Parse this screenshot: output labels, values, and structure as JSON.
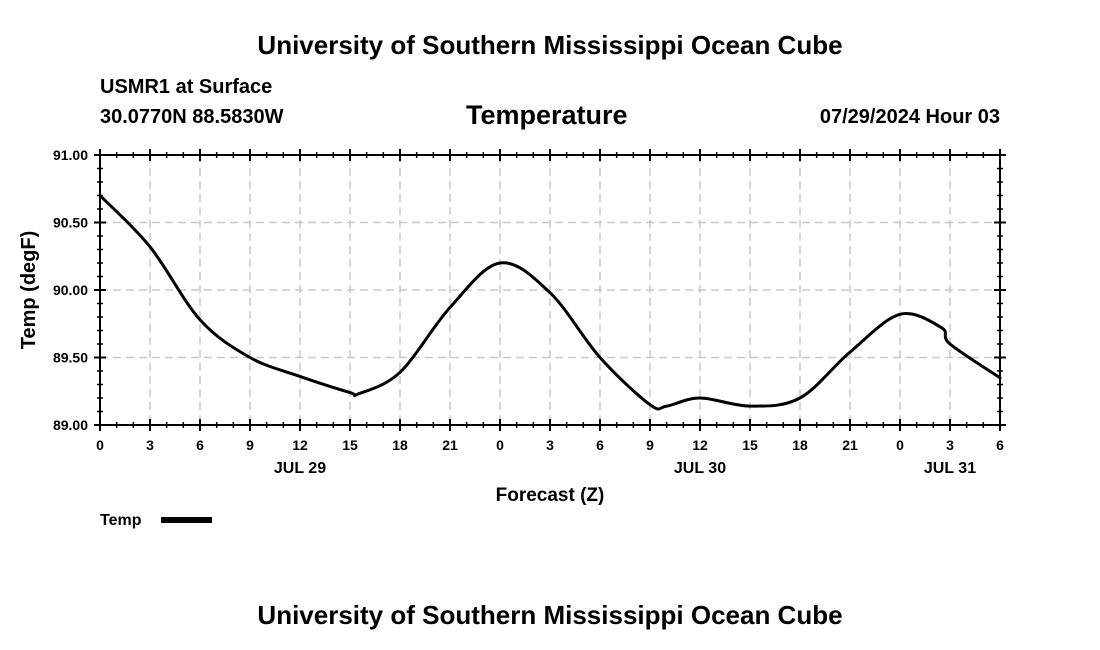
{
  "header": {
    "title_top": "University of Southern Mississippi Ocean Cube",
    "station": "USMR1 at Surface",
    "coords": "30.0770N  88.5830W",
    "chart_title": "Temperature",
    "datetime": "07/29/2024 Hour 03"
  },
  "footer": {
    "title_bottom": "University of Southern Mississippi Ocean Cube"
  },
  "chart_data": {
    "type": "line",
    "title": "Temperature",
    "xlabel": "Forecast (Z)",
    "ylabel": "Temp (degF)",
    "ylim": [
      89.0,
      91.0
    ],
    "xlim": [
      0,
      54
    ],
    "yticks": [
      "89.00",
      "89.50",
      "90.00",
      "90.50",
      "91.00"
    ],
    "yticks_values": [
      89.0,
      89.5,
      90.0,
      90.5,
      91.0
    ],
    "xticks_hours": [
      0,
      3,
      6,
      9,
      12,
      15,
      18,
      21,
      24,
      27,
      30,
      33,
      36,
      39,
      42,
      45,
      48,
      51,
      54
    ],
    "xtick_labels": [
      "0",
      "3",
      "6",
      "9",
      "12",
      "15",
      "18",
      "21",
      "0",
      "3",
      "6",
      "9",
      "12",
      "15",
      "18",
      "21",
      "0",
      "3",
      "6"
    ],
    "day_labels": [
      {
        "hour": 12,
        "label": "JUL 29"
      },
      {
        "hour": 36,
        "label": "JUL 30"
      },
      {
        "hour": 51,
        "label": "JUL 31"
      }
    ],
    "grid": true,
    "legend": [
      {
        "name": "Temp",
        "color": "#000000"
      }
    ],
    "series": [
      {
        "name": "Temp",
        "x": [
          0,
          3,
          6,
          9,
          12,
          15,
          15.5,
          18,
          21,
          24,
          27,
          30,
          33,
          34,
          36,
          39,
          42,
          45,
          48,
          50.5,
          51,
          54
        ],
        "values": [
          90.7,
          90.32,
          89.78,
          89.5,
          89.36,
          89.24,
          89.23,
          89.39,
          89.87,
          90.2,
          89.98,
          89.5,
          89.15,
          89.14,
          89.2,
          89.14,
          89.2,
          89.54,
          89.82,
          89.72,
          89.6,
          89.35
        ]
      }
    ]
  }
}
